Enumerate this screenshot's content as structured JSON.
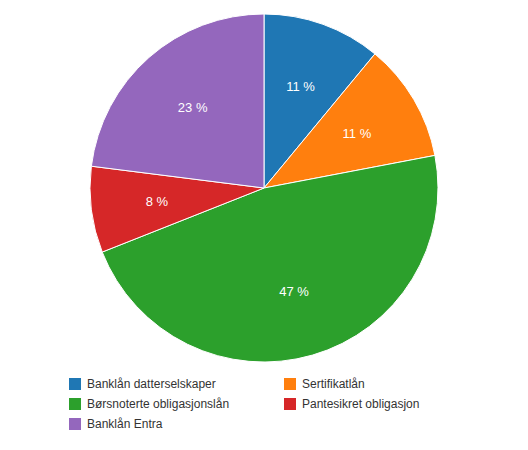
{
  "chart_data": {
    "type": "pie",
    "categories": [
      "Banklån datterselskaper",
      "Sertifikatlån",
      "Børsnoterte obligasjonslån",
      "Pantesikret obligasjon",
      "Banklån Entra"
    ],
    "values": [
      11,
      11,
      47,
      8,
      23
    ],
    "value_labels": [
      "11 %",
      "11 %",
      "47 %",
      "8 %",
      "23 %"
    ],
    "data_labels": true,
    "legend": "bottom"
  }
}
